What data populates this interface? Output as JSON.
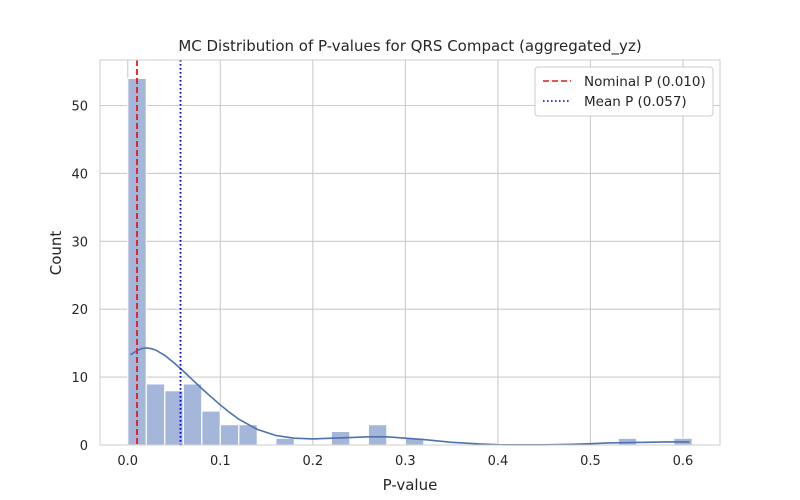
{
  "chart_data": {
    "type": "bar",
    "title": "MC Distribution of P-values for QRS Compact (aggregated_yz)",
    "xlabel": "P-value",
    "ylabel": "Count",
    "xlim": [
      -0.03,
      0.64
    ],
    "ylim": [
      0,
      56.7
    ],
    "xticks": [
      0.0,
      0.1,
      0.2,
      0.3,
      0.4,
      0.5,
      0.6
    ],
    "xtick_labels": [
      "0.0",
      "0.1",
      "0.2",
      "0.3",
      "0.4",
      "0.5",
      "0.6"
    ],
    "yticks": [
      0,
      10,
      20,
      30,
      40,
      50
    ],
    "ytick_labels": [
      "0",
      "10",
      "20",
      "30",
      "40",
      "50"
    ],
    "grid": true,
    "legend_position": "top-right",
    "bar_color": "#a4b6d9",
    "bins": [
      {
        "x0": 0.0,
        "x1": 0.02,
        "count": 54
      },
      {
        "x0": 0.02,
        "x1": 0.04,
        "count": 9
      },
      {
        "x0": 0.04,
        "x1": 0.06,
        "count": 8
      },
      {
        "x0": 0.06,
        "x1": 0.08,
        "count": 9
      },
      {
        "x0": 0.08,
        "x1": 0.1,
        "count": 5
      },
      {
        "x0": 0.1,
        "x1": 0.12,
        "count": 3
      },
      {
        "x0": 0.12,
        "x1": 0.14,
        "count": 3
      },
      {
        "x0": 0.16,
        "x1": 0.18,
        "count": 1
      },
      {
        "x0": 0.22,
        "x1": 0.24,
        "count": 2
      },
      {
        "x0": 0.26,
        "x1": 0.28,
        "count": 3
      },
      {
        "x0": 0.3,
        "x1": 0.32,
        "count": 1
      },
      {
        "x0": 0.53,
        "x1": 0.55,
        "count": 1
      },
      {
        "x0": 0.59,
        "x1": 0.61,
        "count": 1
      }
    ],
    "kde": {
      "color": "#4c72b0",
      "x": [
        0.003,
        0.01,
        0.015,
        0.02,
        0.025,
        0.03,
        0.04,
        0.05,
        0.06,
        0.07,
        0.08,
        0.09,
        0.1,
        0.11,
        0.12,
        0.14,
        0.16,
        0.18,
        0.2,
        0.22,
        0.24,
        0.26,
        0.28,
        0.3,
        0.32,
        0.35,
        0.38,
        0.4,
        0.42,
        0.45,
        0.48,
        0.5,
        0.52,
        0.54,
        0.56,
        0.58,
        0.6,
        0.607
      ],
      "y": [
        13.3,
        13.9,
        14.2,
        14.3,
        14.2,
        14.0,
        13.2,
        12.1,
        10.9,
        9.6,
        8.3,
        7.1,
        5.9,
        4.8,
        3.8,
        2.3,
        1.4,
        1.0,
        0.9,
        1.0,
        1.1,
        1.2,
        1.2,
        1.0,
        0.8,
        0.4,
        0.15,
        0.05,
        0.02,
        0.02,
        0.1,
        0.2,
        0.3,
        0.35,
        0.4,
        0.45,
        0.45,
        0.45
      ]
    },
    "reference_lines": [
      {
        "name": "Nominal P (0.010)",
        "x": 0.01,
        "color": "#e41a1c",
        "style": "dashed"
      },
      {
        "name": "Mean P (0.057)",
        "x": 0.057,
        "color": "#0000cc",
        "style": "dotted"
      }
    ]
  }
}
